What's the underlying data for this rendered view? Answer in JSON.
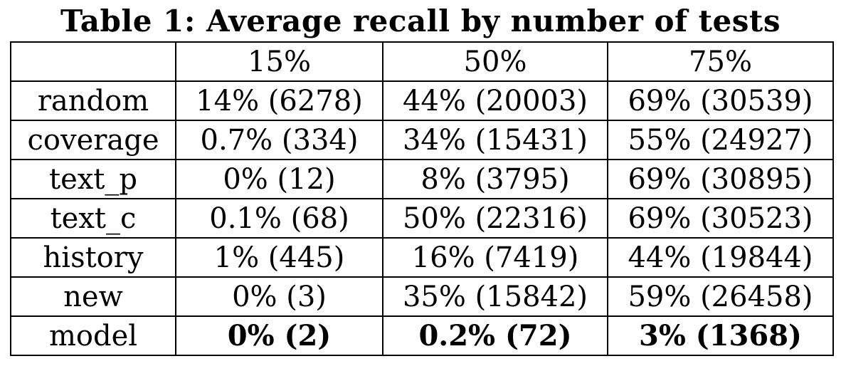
{
  "caption": "Table 1: Average recall by number of tests",
  "table": {
    "headers": [
      "",
      "15%",
      "50%",
      "75%"
    ],
    "rows": [
      {
        "label": "random",
        "cells": [
          {
            "text": "14% (6278)",
            "bold": false
          },
          {
            "text": "44% (20003)",
            "bold": false
          },
          {
            "text": "69% (30539)",
            "bold": false
          }
        ]
      },
      {
        "label": "coverage",
        "cells": [
          {
            "text": "0.7% (334)",
            "bold": false
          },
          {
            "text": "34% (15431)",
            "bold": false
          },
          {
            "text": "55% (24927)",
            "bold": false
          }
        ]
      },
      {
        "label": "text_p",
        "cells": [
          {
            "text": "0% (12)",
            "bold": false
          },
          {
            "text": "8% (3795)",
            "bold": false
          },
          {
            "text": "69% (30895)",
            "bold": false
          }
        ]
      },
      {
        "label": "text_c",
        "cells": [
          {
            "text": "0.1% (68)",
            "bold": false
          },
          {
            "text": "50% (22316)",
            "bold": false
          },
          {
            "text": "69% (30523)",
            "bold": false
          }
        ]
      },
      {
        "label": "history",
        "cells": [
          {
            "text": "1% (445)",
            "bold": false
          },
          {
            "text": "16% (7419)",
            "bold": false
          },
          {
            "text": "44% (19844)",
            "bold": false
          }
        ]
      },
      {
        "label": "new",
        "cells": [
          {
            "text": "0% (3)",
            "bold": false
          },
          {
            "text": "35% (15842)",
            "bold": false
          },
          {
            "text": "59% (26458)",
            "bold": false
          }
        ]
      },
      {
        "label": "model",
        "cells": [
          {
            "text": "0% (2)",
            "bold": true
          },
          {
            "text": "0.2% (72)",
            "bold": true
          },
          {
            "text": "3% (1368)",
            "bold": true
          }
        ]
      }
    ]
  }
}
